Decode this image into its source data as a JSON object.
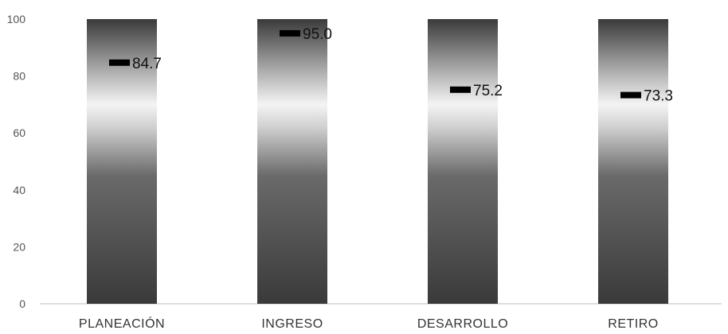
{
  "chart_data": {
    "type": "bar",
    "title": "",
    "xlabel": "",
    "ylabel": "",
    "categories": [
      "PLANEACIÓN",
      "INGRESO",
      "DESARROLLO",
      "RETIRO"
    ],
    "values": [
      84.7,
      95.0,
      75.2,
      73.3
    ],
    "value_labels": [
      "84.7",
      "95.0",
      "75.2",
      "73.3"
    ],
    "bar_totals": [
      100,
      100,
      100,
      100
    ],
    "ylim": [
      0,
      100
    ],
    "yticks": [
      "0",
      "20",
      "40",
      "60",
      "80",
      "100"
    ],
    "grid": false,
    "legend": "none",
    "colors": {
      "bar_dark": "#3a3a3a",
      "bar_light": "#f4f4f4",
      "marker": "#000000",
      "axis": "#bbbbbb"
    }
  }
}
